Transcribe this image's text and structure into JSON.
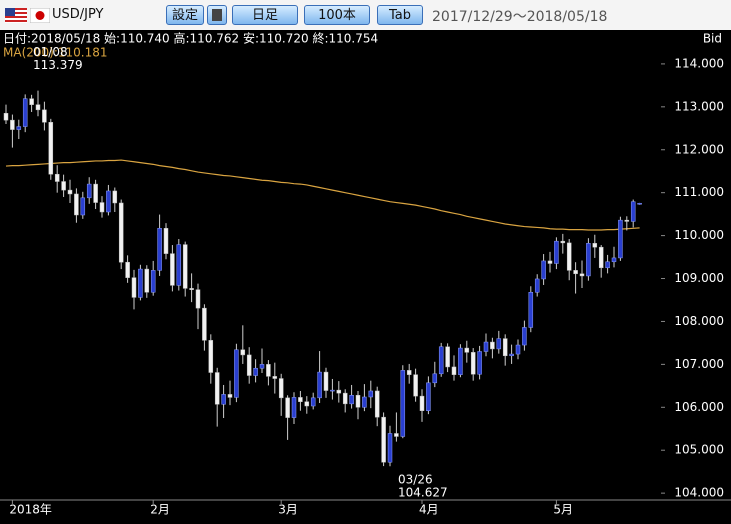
{
  "toolbar": {
    "pair": "USD/JPY",
    "buttons": [
      "設定",
      "日足",
      "100本",
      "Tab"
    ],
    "range": "2017/12/29～2018/05/18"
  },
  "chart_data": {
    "type": "candlestick",
    "info": "日付:2018/05/18 始:110.740 高:110.762 安:110.720 終:110.754",
    "price_label": "Bid",
    "up_color": "#2a3fd0",
    "down_color": "#f2f2f2",
    "ylim": [
      103.84,
      114.79
    ],
    "yticks": [
      {
        "value": 104,
        "label": "104.000"
      },
      {
        "value": 105,
        "label": "105.000"
      },
      {
        "value": 106,
        "label": "106.000"
      },
      {
        "value": 107,
        "label": "107.000"
      },
      {
        "value": 108,
        "label": "108.000"
      },
      {
        "value": 109,
        "label": "109.000"
      },
      {
        "value": 110,
        "label": "110.000"
      },
      {
        "value": 111,
        "label": "111.000"
      },
      {
        "value": 112,
        "label": "112.000"
      },
      {
        "value": 113,
        "label": "113.000"
      },
      {
        "value": 114,
        "label": "114.000"
      }
    ],
    "categories": [
      null,
      "2018年",
      null,
      null,
      null,
      null,
      null,
      null,
      null,
      null,
      null,
      null,
      null,
      null,
      null,
      null,
      null,
      null,
      null,
      null,
      null,
      null,
      null,
      "2月",
      null,
      null,
      null,
      null,
      null,
      null,
      null,
      null,
      null,
      null,
      null,
      null,
      null,
      null,
      null,
      null,
      null,
      null,
      null,
      "3月",
      null,
      null,
      null,
      null,
      null,
      null,
      null,
      null,
      null,
      null,
      null,
      null,
      null,
      null,
      null,
      null,
      null,
      null,
      null,
      null,
      null,
      "4月",
      null,
      null,
      null,
      null,
      null,
      null,
      null,
      null,
      null,
      null,
      null,
      null,
      null,
      null,
      null,
      null,
      null,
      null,
      null,
      null,
      "5月",
      null,
      null,
      null,
      null,
      null,
      null,
      null,
      null,
      null,
      null,
      null,
      null,
      null
    ],
    "open": [
      112.85,
      112.69,
      112.47,
      112.54,
      113.19,
      113.05,
      112.93,
      112.64,
      111.43,
      111.26,
      111.06,
      110.97,
      110.48,
      110.88,
      111.2,
      110.77,
      110.55,
      111.04,
      110.76,
      109.38,
      109.02,
      108.56,
      109.22,
      108.68,
      109.19,
      110.17,
      109.58,
      108.84,
      109.79,
      108.77,
      108.74,
      108.31,
      107.56,
      106.81,
      106.07,
      106.3,
      106.23,
      107.34,
      107.22,
      106.74,
      106.91,
      107,
      106.72,
      106.67,
      106.22,
      105.76,
      106.23,
      106.13,
      106.03,
      106.22,
      106.82,
      106.39,
      106.4,
      106.33,
      106.08,
      106.28,
      106,
      106.24,
      106.38,
      105.77,
      104.72,
      105.39,
      105.32,
      106.86,
      106.76,
      106.26,
      105.92,
      106.57,
      106.78,
      107.41,
      106.94,
      106.76,
      107.38,
      107.28,
      106.77,
      107.3,
      107.52,
      107.36,
      107.6,
      107.2,
      107.24,
      107.45,
      107.86,
      108.68,
      108.99,
      109.41,
      109.35,
      109.87,
      109.83,
      109.19,
      109.11,
      109.06,
      109.82,
      109.73,
      109.25,
      109.39,
      109.48,
      110.36,
      110.33,
      110.74
    ],
    "high": [
      113.05,
      112.82,
      112.7,
      113.29,
      113.28,
      113.379,
      113.12,
      112.72,
      111.64,
      111.42,
      111.3,
      111.1,
      111.02,
      111.36,
      111.3,
      110.92,
      111.18,
      111.12,
      110.84,
      109.54,
      109.2,
      109.32,
      109.31,
      109.41,
      110.49,
      110.29,
      109.78,
      109.92,
      109.86,
      109.12,
      108.88,
      108.4,
      107.7,
      106.92,
      106.52,
      106.62,
      107.48,
      107.91,
      107.4,
      107.12,
      107.37,
      107.1,
      107.04,
      106.78,
      106.28,
      106.35,
      106.38,
      106.26,
      106.34,
      107.31,
      106.92,
      106.66,
      106.61,
      106.42,
      106.52,
      106.38,
      106.54,
      106.62,
      106.48,
      105.88,
      105.57,
      105.88,
      106.98,
      107.01,
      106.9,
      106.42,
      106.72,
      107.06,
      107.5,
      107.49,
      107.21,
      107.47,
      107.55,
      107.38,
      107.43,
      107.72,
      107.62,
      107.78,
      107.7,
      107.46,
      107.58,
      108.02,
      108.82,
      109.1,
      109.57,
      109.62,
      109.96,
      110.04,
      109.92,
      109.38,
      109.42,
      109.94,
      110.02,
      109.78,
      109.55,
      109.74,
      110.44,
      110.45,
      110.84,
      110.762
    ],
    "low": [
      112.6,
      112.05,
      112.25,
      112.41,
      112.88,
      112.78,
      112.45,
      111.3,
      111,
      110.9,
      110.76,
      110.3,
      110.39,
      110.74,
      110.62,
      110.42,
      110.47,
      110.55,
      109.22,
      108.9,
      108.28,
      108.49,
      108.55,
      108.6,
      109.06,
      109.45,
      108.7,
      108.72,
      108.58,
      108.45,
      107.82,
      107.32,
      106.55,
      105.55,
      105.75,
      106.05,
      106.12,
      107.01,
      106.55,
      106.58,
      106.8,
      106.51,
      106.32,
      105.8,
      105.24,
      105.61,
      105.92,
      105.85,
      105.95,
      106.1,
      106.22,
      106.18,
      106.11,
      105.88,
      105.97,
      105.72,
      105.91,
      105.98,
      105.56,
      104.63,
      104.627,
      105.2,
      105.28,
      106.55,
      106.13,
      105.66,
      105.84,
      106.47,
      106.71,
      106.82,
      106.62,
      106.7,
      107.04,
      106.62,
      106.65,
      107.19,
      107.14,
      107.25,
      106.97,
      107.01,
      107.12,
      107.32,
      107.75,
      108.58,
      108.85,
      109.14,
      109.22,
      109.58,
      108.96,
      108.65,
      108.78,
      108.95,
      109.48,
      109.02,
      109.12,
      109.26,
      109.41,
      110.12,
      110.19,
      110.72
    ],
    "close": [
      112.69,
      112.47,
      112.54,
      113.19,
      113.05,
      112.93,
      112.64,
      111.43,
      111.26,
      111.06,
      110.97,
      110.48,
      110.88,
      111.2,
      110.77,
      110.55,
      111.04,
      110.76,
      109.38,
      109.02,
      108.56,
      109.22,
      108.68,
      109.19,
      110.17,
      109.58,
      108.84,
      109.79,
      108.77,
      108.74,
      108.31,
      107.56,
      106.81,
      106.07,
      106.3,
      106.23,
      107.34,
      107.22,
      106.74,
      106.91,
      107,
      106.72,
      106.67,
      106.22,
      105.76,
      106.23,
      106.13,
      106.03,
      106.22,
      106.82,
      106.39,
      106.4,
      106.33,
      106.08,
      106.28,
      106,
      106.24,
      106.38,
      105.77,
      104.72,
      105.39,
      105.32,
      106.86,
      106.76,
      106.26,
      105.92,
      106.57,
      106.78,
      107.41,
      106.94,
      106.76,
      107.38,
      107.28,
      106.77,
      107.3,
      107.52,
      107.36,
      107.6,
      107.2,
      107.24,
      107.45,
      107.86,
      108.68,
      108.99,
      109.41,
      109.35,
      109.87,
      109.83,
      109.19,
      109.11,
      109.06,
      109.82,
      109.73,
      109.25,
      109.39,
      109.48,
      110.36,
      110.33,
      110.79,
      110.754
    ],
    "ma": {
      "label": "MA(200):110.181",
      "color": "#d9a441",
      "values": [
        111.62,
        111.63,
        111.63,
        111.64,
        111.65,
        111.66,
        111.67,
        111.68,
        111.69,
        111.7,
        111.7,
        111.71,
        111.72,
        111.73,
        111.74,
        111.74,
        111.75,
        111.75,
        111.76,
        111.74,
        111.72,
        111.7,
        111.68,
        111.66,
        111.63,
        111.61,
        111.59,
        111.56,
        111.54,
        111.51,
        111.48,
        111.46,
        111.44,
        111.42,
        111.4,
        111.39,
        111.37,
        111.35,
        111.33,
        111.31,
        111.29,
        111.28,
        111.26,
        111.24,
        111.23,
        111.21,
        111.2,
        111.18,
        111.15,
        111.12,
        111.09,
        111.06,
        111.03,
        111,
        110.97,
        110.94,
        110.91,
        110.88,
        110.85,
        110.82,
        110.79,
        110.77,
        110.75,
        110.73,
        110.71,
        110.68,
        110.65,
        110.62,
        110.58,
        110.55,
        110.52,
        110.49,
        110.45,
        110.42,
        110.39,
        110.36,
        110.33,
        110.3,
        110.27,
        110.25,
        110.23,
        110.21,
        110.2,
        110.19,
        110.18,
        110.16,
        110.15,
        110.15,
        110.14,
        110.14,
        110.14,
        110.13,
        110.13,
        110.13,
        110.14,
        110.14,
        110.15,
        110.16,
        110.17,
        110.18
      ]
    },
    "annotations": [
      {
        "date": "01/08",
        "value": 113.379
      },
      {
        "date": "03/26",
        "value": 104.627
      }
    ]
  }
}
